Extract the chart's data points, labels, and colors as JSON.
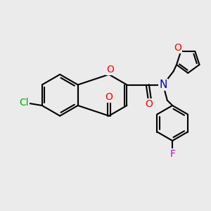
{
  "bg_color": "#ebebeb",
  "bond_color": "#000000",
  "bond_width": 1.5,
  "atom_colors": {
    "O": "#ff0000",
    "N": "#0000cc",
    "Cl": "#00aa00",
    "F": "#cc00cc"
  },
  "font_size": 9,
  "xlim": [
    0,
    10
  ],
  "ylim": [
    0,
    10
  ]
}
